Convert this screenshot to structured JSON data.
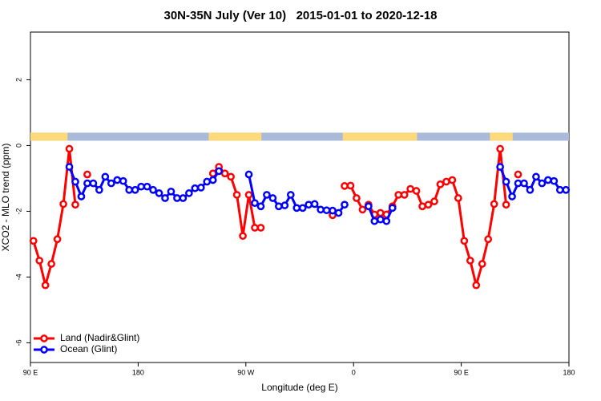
{
  "chart_data": {
    "type": "line",
    "title": "30N-35N July (Ver 10)   2015-01-01 to 2020-12-18",
    "xlabel": "Longitude (deg E)",
    "ylabel": "XCO2 - MLO trend (ppm)",
    "xlim": [
      90,
      540
    ],
    "xticks": [
      {
        "value": 90,
        "label": "90 E"
      },
      {
        "value": 180,
        "label": "180"
      },
      {
        "value": 270,
        "label": "90 W"
      },
      {
        "value": 360,
        "label": "0"
      },
      {
        "value": 450,
        "label": "90 E"
      },
      {
        "value": 540,
        "label": "180"
      }
    ],
    "ylim": [
      -6.6,
      3.45
    ],
    "yticks": [
      -6,
      -4,
      -2,
      0,
      2
    ],
    "land_color": "#ffd97a",
    "ocean_color": "#a9bbd9",
    "land_ranges": [
      [
        90,
        121
      ],
      [
        239,
        283
      ],
      [
        351,
        413
      ],
      [
        474,
        493
      ]
    ],
    "legend": "bottom-left",
    "x": [
      92.5,
      97.5,
      102.5,
      107.5,
      112.5,
      117.5,
      122.5,
      127.5,
      132.5,
      137.5,
      142.5,
      147.5,
      152.5,
      157.5,
      162.5,
      167.5,
      172.5,
      177.5,
      182.5,
      187.5,
      192.5,
      197.5,
      202.5,
      207.5,
      212.5,
      217.5,
      222.5,
      227.5,
      232.5,
      237.5,
      242.5,
      247.5,
      252.5,
      257.5,
      262.5,
      267.5,
      272.5,
      277.5,
      282.5,
      287.5,
      292.5,
      297.5,
      302.5,
      307.5,
      312.5,
      317.5,
      322.5,
      327.5,
      332.5,
      337.5,
      342.5,
      347.5,
      352.5,
      357.5,
      362.5,
      367.5,
      372.5,
      377.5,
      382.5,
      387.5,
      392.5,
      397.5,
      402.5,
      407.5,
      412.5,
      417.5,
      422.5,
      427.5,
      432.5,
      437.5,
      442.5,
      447.5,
      452.5,
      457.5,
      462.5,
      467.5,
      472.5,
      477.5,
      482.5,
      487.5,
      492.5,
      497.5,
      502.5,
      507.5,
      512.5,
      517.5,
      522.5,
      527.5,
      532.5,
      537.5
    ],
    "series": [
      {
        "name": "Land (Nadir&Glint)",
        "color": "#ff0000",
        "values": [
          -2.9,
          -3.5,
          -4.25,
          -3.6,
          -2.85,
          -1.78,
          -0.1,
          -1.8,
          null,
          -0.88,
          null,
          null,
          null,
          null,
          null,
          null,
          null,
          null,
          null,
          null,
          null,
          null,
          null,
          null,
          null,
          null,
          null,
          null,
          null,
          null,
          -0.85,
          -0.65,
          -0.85,
          -0.95,
          -1.5,
          -2.75,
          -1.5,
          -2.5,
          -2.5,
          null,
          null,
          null,
          null,
          null,
          null,
          null,
          null,
          null,
          null,
          null,
          -2.12,
          null,
          -1.23,
          -1.22,
          -1.6,
          -1.95,
          -1.8,
          -2.1,
          -2.05,
          -2.1,
          -1.85,
          -1.5,
          -1.5,
          -1.32,
          -1.38,
          -1.85,
          -1.8,
          -1.7,
          -1.18,
          -1.1,
          -1.05,
          -1.6,
          -2.9,
          -3.5,
          -4.25,
          -3.6,
          -2.85,
          -1.78,
          -0.1,
          -1.8,
          null,
          -0.88,
          null,
          null,
          null,
          null,
          null,
          null,
          null,
          null
        ]
      },
      {
        "name": "Ocean (Glint)",
        "color": "#0000ff",
        "values": [
          null,
          null,
          null,
          null,
          null,
          null,
          -0.65,
          -1.1,
          -1.55,
          -1.15,
          -1.15,
          -1.35,
          -0.95,
          -1.15,
          -1.05,
          -1.08,
          -1.35,
          -1.35,
          -1.25,
          -1.25,
          -1.35,
          -1.45,
          -1.6,
          -1.4,
          -1.6,
          -1.6,
          -1.45,
          -1.3,
          -1.28,
          -1.1,
          -1.05,
          -0.78,
          null,
          null,
          null,
          null,
          -0.88,
          -1.75,
          -1.85,
          -1.5,
          -1.6,
          -1.85,
          -1.82,
          -1.5,
          -1.9,
          -1.9,
          -1.8,
          -1.78,
          -1.95,
          -1.97,
          -1.98,
          -2.05,
          -1.8,
          null,
          null,
          null,
          -1.85,
          -2.3,
          -2.25,
          -2.3,
          -1.9,
          null,
          null,
          null,
          null,
          null,
          null,
          null,
          null,
          null,
          null,
          null,
          null,
          null,
          null,
          null,
          null,
          null,
          -0.65,
          -1.1,
          -1.55,
          -1.15,
          -1.15,
          -1.35,
          -0.95,
          -1.15,
          -1.05,
          -1.08,
          -1.35,
          -1.35
        ]
      }
    ]
  }
}
